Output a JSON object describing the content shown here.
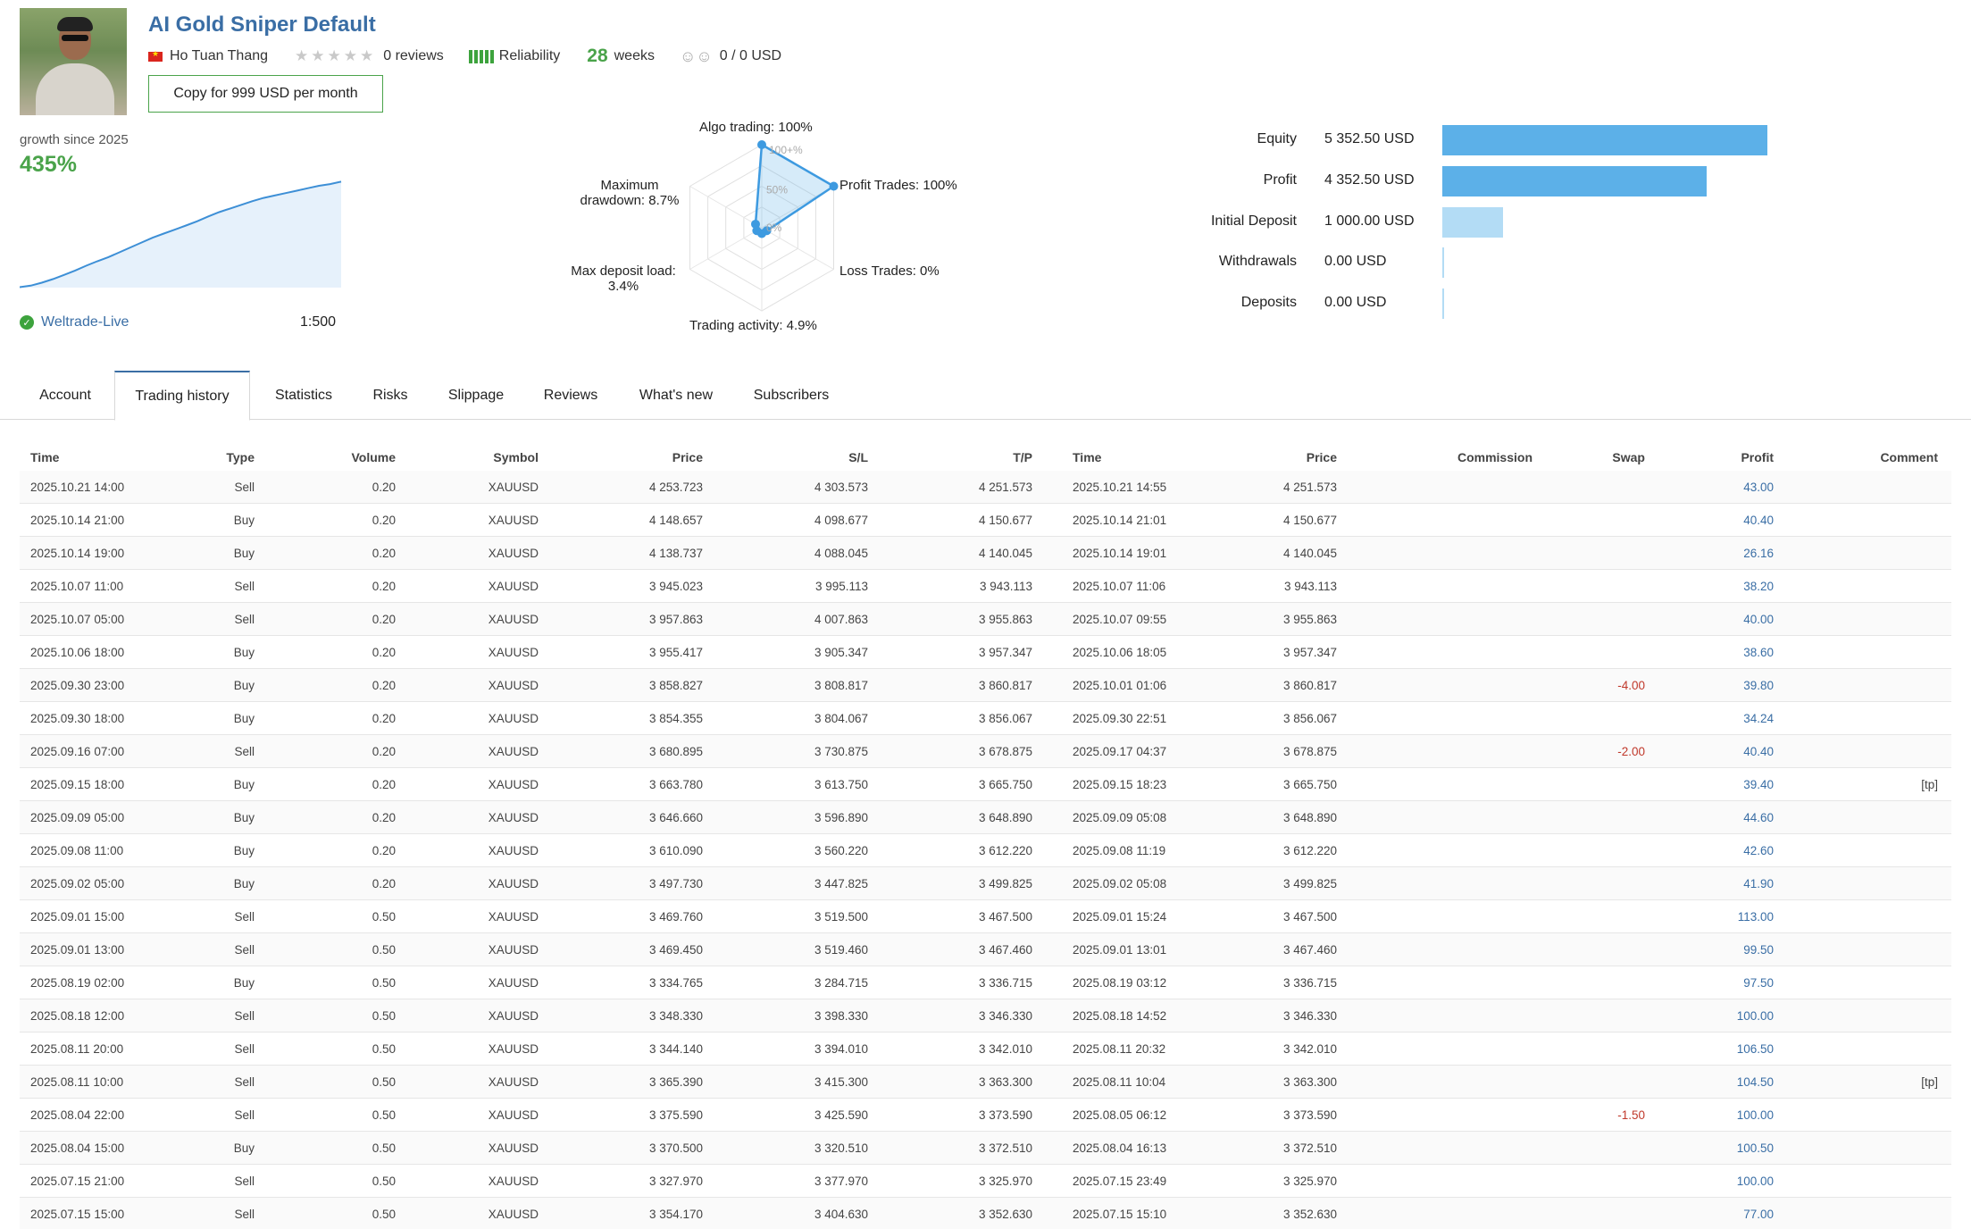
{
  "header": {
    "title": "AI Gold Sniper Default",
    "author": "Ho Tuan Thang",
    "stars": "★★★★★",
    "reviews": "0 reviews",
    "reliability": "Reliability",
    "weeks_num": "28",
    "weeks_label": "weeks",
    "subscribers_icon": "subscribers-icon",
    "subscribers": "0 / 0 USD",
    "copy_button": "Copy for 999 USD per month"
  },
  "growth": {
    "label": "growth since 2025",
    "value": "435%",
    "broker": "Weltrade-Live",
    "leverage": "1:500",
    "curve": [
      2,
      8,
      20,
      35,
      52,
      70,
      90,
      108,
      125,
      145,
      165,
      185,
      205,
      222,
      238,
      255,
      272,
      292,
      310,
      325,
      340,
      355,
      368,
      378,
      388,
      398,
      408,
      418,
      425,
      435
    ]
  },
  "radar": {
    "algo": "Algo trading: 100%",
    "profit_trades": "Profit Trades: 100%",
    "loss_trades": "Loss Trades: 0%",
    "activity": "Trading activity: 4.9%",
    "deposit_load": "Max deposit load:",
    "deposit_load_val": "3.4%",
    "drawdown": "Maximum",
    "drawdown_val": "drawdown: 8.7%",
    "tick_100": "100+%",
    "tick_50": "50%",
    "tick_0": "0%",
    "values": [
      1.0,
      1.0,
      0.0,
      0.049,
      0.034,
      0.087
    ]
  },
  "balance": [
    {
      "label": "Equity",
      "value": "5 352.50 USD",
      "amount": 5352.5,
      "color": "#5cb0e8"
    },
    {
      "label": "Profit",
      "value": "4 352.50 USD",
      "amount": 4352.5,
      "color": "#5cb0e8"
    },
    {
      "label": "Initial Deposit",
      "value": "1 000.00 USD",
      "amount": 1000,
      "color": "#b3dcf5"
    },
    {
      "label": "Withdrawals",
      "value": "0.00 USD",
      "amount": 0,
      "color": "#b3dcf5"
    },
    {
      "label": "Deposits",
      "value": "0.00 USD",
      "amount": 0,
      "color": "#b3dcf5"
    }
  ],
  "tabs": [
    "Account",
    "Trading history",
    "Statistics",
    "Risks",
    "Slippage",
    "Reviews",
    "What's new",
    "Subscribers"
  ],
  "table": {
    "headers": [
      "Time",
      "Type",
      "Volume",
      "Symbol",
      "Price",
      "S/L",
      "T/P",
      "Time",
      "Price",
      "Commission",
      "Swap",
      "Profit",
      "Comment"
    ],
    "rows": [
      [
        "2025.10.21 14:00",
        "Sell",
        "0.20",
        "XAUUSD",
        "4 253.723",
        "4 303.573",
        "4 251.573",
        "2025.10.21 14:55",
        "4 251.573",
        "",
        "",
        "43.00",
        ""
      ],
      [
        "2025.10.14 21:00",
        "Buy",
        "0.20",
        "XAUUSD",
        "4 148.657",
        "4 098.677",
        "4 150.677",
        "2025.10.14 21:01",
        "4 150.677",
        "",
        "",
        "40.40",
        ""
      ],
      [
        "2025.10.14 19:00",
        "Buy",
        "0.20",
        "XAUUSD",
        "4 138.737",
        "4 088.045",
        "4 140.045",
        "2025.10.14 19:01",
        "4 140.045",
        "",
        "",
        "26.16",
        ""
      ],
      [
        "2025.10.07 11:00",
        "Sell",
        "0.20",
        "XAUUSD",
        "3 945.023",
        "3 995.113",
        "3 943.113",
        "2025.10.07 11:06",
        "3 943.113",
        "",
        "",
        "38.20",
        ""
      ],
      [
        "2025.10.07 05:00",
        "Sell",
        "0.20",
        "XAUUSD",
        "3 957.863",
        "4 007.863",
        "3 955.863",
        "2025.10.07 09:55",
        "3 955.863",
        "",
        "",
        "40.00",
        ""
      ],
      [
        "2025.10.06 18:00",
        "Buy",
        "0.20",
        "XAUUSD",
        "3 955.417",
        "3 905.347",
        "3 957.347",
        "2025.10.06 18:05",
        "3 957.347",
        "",
        "",
        "38.60",
        ""
      ],
      [
        "2025.09.30 23:00",
        "Buy",
        "0.20",
        "XAUUSD",
        "3 858.827",
        "3 808.817",
        "3 860.817",
        "2025.10.01 01:06",
        "3 860.817",
        "",
        "-4.00",
        "39.80",
        ""
      ],
      [
        "2025.09.30 18:00",
        "Buy",
        "0.20",
        "XAUUSD",
        "3 854.355",
        "3 804.067",
        "3 856.067",
        "2025.09.30 22:51",
        "3 856.067",
        "",
        "",
        "34.24",
        ""
      ],
      [
        "2025.09.16 07:00",
        "Sell",
        "0.20",
        "XAUUSD",
        "3 680.895",
        "3 730.875",
        "3 678.875",
        "2025.09.17 04:37",
        "3 678.875",
        "",
        "-2.00",
        "40.40",
        ""
      ],
      [
        "2025.09.15 18:00",
        "Buy",
        "0.20",
        "XAUUSD",
        "3 663.780",
        "3 613.750",
        "3 665.750",
        "2025.09.15 18:23",
        "3 665.750",
        "",
        "",
        "39.40",
        "[tp]"
      ],
      [
        "2025.09.09 05:00",
        "Buy",
        "0.20",
        "XAUUSD",
        "3 646.660",
        "3 596.890",
        "3 648.890",
        "2025.09.09 05:08",
        "3 648.890",
        "",
        "",
        "44.60",
        ""
      ],
      [
        "2025.09.08 11:00",
        "Buy",
        "0.20",
        "XAUUSD",
        "3 610.090",
        "3 560.220",
        "3 612.220",
        "2025.09.08 11:19",
        "3 612.220",
        "",
        "",
        "42.60",
        ""
      ],
      [
        "2025.09.02 05:00",
        "Buy",
        "0.20",
        "XAUUSD",
        "3 497.730",
        "3 447.825",
        "3 499.825",
        "2025.09.02 05:08",
        "3 499.825",
        "",
        "",
        "41.90",
        ""
      ],
      [
        "2025.09.01 15:00",
        "Sell",
        "0.50",
        "XAUUSD",
        "3 469.760",
        "3 519.500",
        "3 467.500",
        "2025.09.01 15:24",
        "3 467.500",
        "",
        "",
        "113.00",
        ""
      ],
      [
        "2025.09.01 13:00",
        "Sell",
        "0.50",
        "XAUUSD",
        "3 469.450",
        "3 519.460",
        "3 467.460",
        "2025.09.01 13:01",
        "3 467.460",
        "",
        "",
        "99.50",
        ""
      ],
      [
        "2025.08.19 02:00",
        "Buy",
        "0.50",
        "XAUUSD",
        "3 334.765",
        "3 284.715",
        "3 336.715",
        "2025.08.19 03:12",
        "3 336.715",
        "",
        "",
        "97.50",
        ""
      ],
      [
        "2025.08.18 12:00",
        "Sell",
        "0.50",
        "XAUUSD",
        "3 348.330",
        "3 398.330",
        "3 346.330",
        "2025.08.18 14:52",
        "3 346.330",
        "",
        "",
        "100.00",
        ""
      ],
      [
        "2025.08.11 20:00",
        "Sell",
        "0.50",
        "XAUUSD",
        "3 344.140",
        "3 394.010",
        "3 342.010",
        "2025.08.11 20:32",
        "3 342.010",
        "",
        "",
        "106.50",
        ""
      ],
      [
        "2025.08.11 10:00",
        "Sell",
        "0.50",
        "XAUUSD",
        "3 365.390",
        "3 415.300",
        "3 363.300",
        "2025.08.11 10:04",
        "3 363.300",
        "",
        "",
        "104.50",
        "[tp]"
      ],
      [
        "2025.08.04 22:00",
        "Sell",
        "0.50",
        "XAUUSD",
        "3 375.590",
        "3 425.590",
        "3 373.590",
        "2025.08.05 06:12",
        "3 373.590",
        "",
        "-1.50",
        "100.00",
        ""
      ],
      [
        "2025.08.04 15:00",
        "Buy",
        "0.50",
        "XAUUSD",
        "3 370.500",
        "3 320.510",
        "3 372.510",
        "2025.08.04 16:13",
        "3 372.510",
        "",
        "",
        "100.50",
        ""
      ],
      [
        "2025.07.15 21:00",
        "Sell",
        "0.50",
        "XAUUSD",
        "3 327.970",
        "3 377.970",
        "3 325.970",
        "2025.07.15 23:49",
        "3 325.970",
        "",
        "",
        "100.00",
        ""
      ],
      [
        "2025.07.15 15:00",
        "Sell",
        "0.50",
        "XAUUSD",
        "3 354.170",
        "3 404.630",
        "3 352.630",
        "2025.07.15 15:10",
        "3 352.630",
        "",
        "",
        "77.00",
        ""
      ]
    ]
  }
}
